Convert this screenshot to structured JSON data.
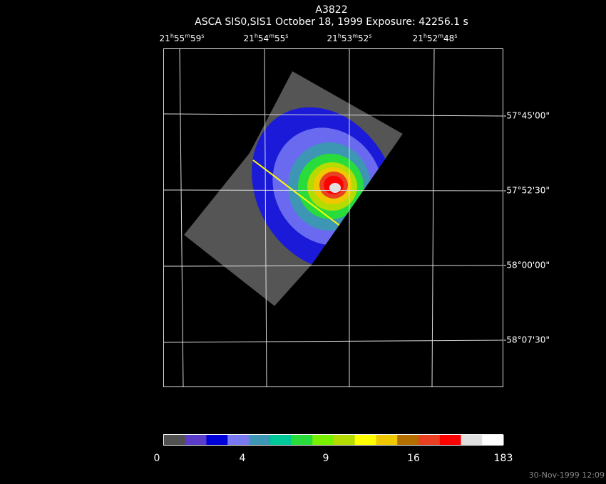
{
  "title": "A3822",
  "subtitle": "ASCA SIS0,SIS1 October 18, 1999 Exposure: 42256.1 s",
  "ra_labels": [
    {
      "h": "21",
      "m": "55",
      "s": "59"
    },
    {
      "h": "21",
      "m": "54",
      "s": "55"
    },
    {
      "h": "21",
      "m": "53",
      "s": "52"
    },
    {
      "h": "21",
      "m": "52",
      "s": "48"
    }
  ],
  "dec_labels": [
    "-57°45'00\"",
    "-57°52'30\"",
    "-58°00'00\"",
    "-58°07'30\""
  ],
  "colorbar": {
    "colors": [
      "#505050",
      "#5a3cc8",
      "#0000d8",
      "#7878f0",
      "#3c96b4",
      "#00c896",
      "#28dc3c",
      "#78f000",
      "#b4dc00",
      "#ffff00",
      "#f0c800",
      "#b46e00",
      "#e84020",
      "#ff0000",
      "#e0e0e0",
      "#ffffff"
    ],
    "labels": [
      "0",
      "4",
      "9",
      "16",
      "183"
    ]
  },
  "footer": "30-Nov-1999 12:09"
}
